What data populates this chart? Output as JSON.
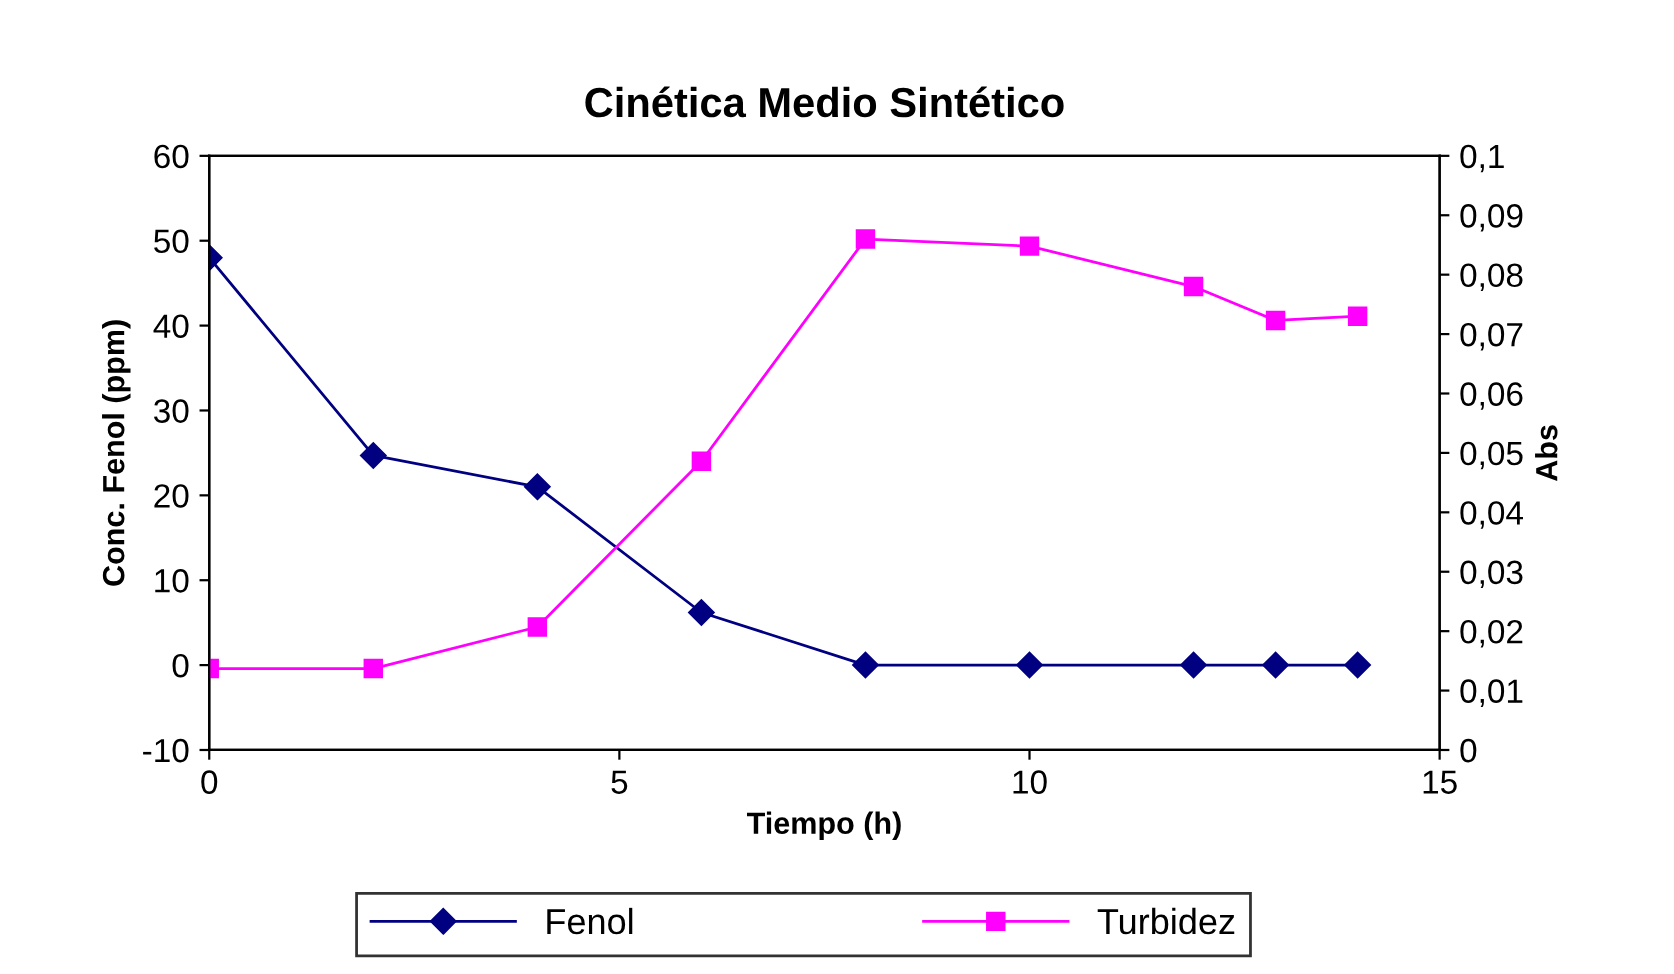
{
  "chart_data": {
    "type": "line",
    "title": "Cinética Medio Sintético",
    "xlabel": "Tiempo (h)",
    "ylabel": "Conc. Fenol (ppm)",
    "y2label": "Abs",
    "xlim": [
      0,
      15
    ],
    "xticks": [
      0,
      5,
      10,
      15
    ],
    "ylim": [
      -10,
      60
    ],
    "yticks": [
      -10,
      0,
      10,
      20,
      30,
      40,
      50,
      60
    ],
    "y2lim": [
      0,
      0.1
    ],
    "y2ticks": [
      {
        "value": 0,
        "label": "0"
      },
      {
        "value": 0.01,
        "label": "0,01"
      },
      {
        "value": 0.02,
        "label": "0,02"
      },
      {
        "value": 0.03,
        "label": "0,03"
      },
      {
        "value": 0.04,
        "label": "0,04"
      },
      {
        "value": 0.05,
        "label": "0,05"
      },
      {
        "value": 0.06,
        "label": "0,06"
      },
      {
        "value": 0.07,
        "label": "0,07"
      },
      {
        "value": 0.08,
        "label": "0,08"
      },
      {
        "value": 0.09,
        "label": "0,09"
      },
      {
        "value": 0.1,
        "label": "0,1"
      }
    ],
    "grid": false,
    "legend": "bottom",
    "series": [
      {
        "name": "Fenol",
        "color": "#000080",
        "marker": "diamond",
        "x": [
          0,
          2,
          4,
          6,
          8,
          10,
          12,
          13,
          14
        ],
        "values": [
          48,
          24.7,
          21,
          6.2,
          0,
          0,
          0,
          0,
          0
        ]
      },
      {
        "name": "Turbidez",
        "color": "#ff00ff",
        "marker": "square",
        "axis": "y2",
        "x": [
          0,
          2,
          4,
          6,
          8,
          10,
          12,
          13,
          14
        ],
        "values": [
          0.0137,
          0.0137,
          0.0207,
          0.0486,
          0.086,
          0.0848,
          0.078,
          0.0723,
          0.073
        ]
      }
    ]
  }
}
